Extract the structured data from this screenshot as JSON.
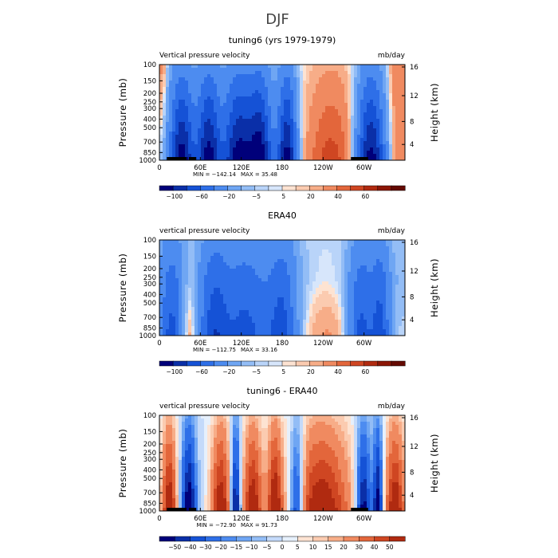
{
  "figure_title": "DJF",
  "chart_data": [
    {
      "type": "heatmap",
      "title": "tuning6 (yrs 1979-1979)",
      "left_label": "Vertical pressure velocity",
      "right_label": "mb/day",
      "ylabel": "Pressure (mb)",
      "ylabel_right": "Height (km)",
      "xticks": [
        "0",
        "60E",
        "120E",
        "180",
        "120W",
        "60W"
      ],
      "yticks": [
        "100",
        "150",
        "200",
        "250",
        "300",
        "400",
        "500",
        "700",
        "850",
        "1000"
      ],
      "yticks_right": [
        "16",
        "12",
        "8",
        "4"
      ],
      "min_text": "MIN = −142.14",
      "max_text": "MAX =  35.48",
      "colorbar_labels": [
        "−100",
        "−60",
        "−20",
        "−5",
        "5",
        "20",
        "40",
        "60"
      ],
      "colorbar_colors": [
        "#00007a",
        "#0a2fa8",
        "#1552d6",
        "#2e6fe8",
        "#4d8cf0",
        "#6fa6f3",
        "#93bdf6",
        "#b9d4f9",
        "#d7e6fb",
        "#fde3d2",
        "#fbcbb0",
        "#f7ad88",
        "#f08a60",
        "#e3663b",
        "#cf4622",
        "#b02a10",
        "#8c1606",
        "#640a02"
      ]
    },
    {
      "type": "heatmap",
      "title": "ERA40",
      "left_label": "vertical pressure velocity",
      "right_label": "mb/day",
      "ylabel": "Pressure (mb)",
      "ylabel_right": "Height (km)",
      "xticks": [
        "0",
        "60E",
        "120E",
        "180",
        "120W",
        "60W"
      ],
      "yticks": [
        "100",
        "150",
        "200",
        "250",
        "300",
        "400",
        "500",
        "700",
        "850",
        "1000"
      ],
      "yticks_right": [
        "16",
        "12",
        "8",
        "4"
      ],
      "min_text": "MIN = −112.75",
      "max_text": "MAX =  33.16",
      "colorbar_labels": [
        "−100",
        "−60",
        "−20",
        "−5",
        "5",
        "20",
        "40",
        "60"
      ],
      "colorbar_colors": [
        "#00007a",
        "#0a2fa8",
        "#1552d6",
        "#2e6fe8",
        "#4d8cf0",
        "#6fa6f3",
        "#93bdf6",
        "#b9d4f9",
        "#d7e6fb",
        "#fde3d2",
        "#fbcbb0",
        "#f7ad88",
        "#f08a60",
        "#e3663b",
        "#cf4622",
        "#b02a10",
        "#8c1606",
        "#640a02"
      ]
    },
    {
      "type": "heatmap",
      "title": "tuning6 - ERA40",
      "left_label": "vertical pressure velocity",
      "right_label": "mb/day",
      "ylabel": "Pressure (mb)",
      "ylabel_right": "Height (km)",
      "xticks": [
        "0",
        "60E",
        "120E",
        "180",
        "120W",
        "60W"
      ],
      "yticks": [
        "100",
        "150",
        "200",
        "250",
        "300",
        "400",
        "500",
        "700",
        "850",
        "1000"
      ],
      "yticks_right": [
        "16",
        "12",
        "8",
        "4"
      ],
      "min_text": "MIN = −72.90",
      "max_text": "MAX =  91.73",
      "colorbar_labels": [
        "−50",
        "−40",
        "−30",
        "−20",
        "−15",
        "−10",
        "−5",
        "0",
        "5",
        "10",
        "15",
        "20",
        "30",
        "40",
        "50"
      ],
      "colorbar_colors": [
        "#00007a",
        "#0a2fa8",
        "#1552d6",
        "#2e6fe8",
        "#4d8cf0",
        "#6fa6f3",
        "#93bdf6",
        "#c4dafa",
        "#e6f0fc",
        "#fde3d2",
        "#fbcbb0",
        "#f7ad88",
        "#f08a60",
        "#e3663b",
        "#cf4622",
        "#b02a10"
      ]
    }
  ]
}
